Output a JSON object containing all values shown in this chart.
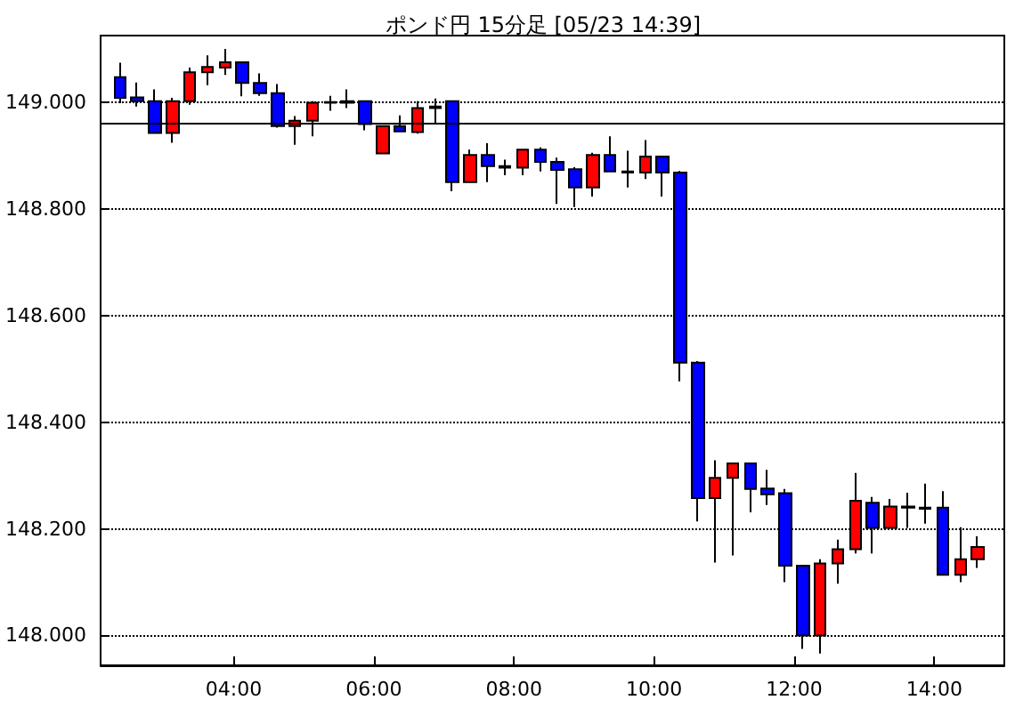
{
  "chart_data": {
    "type": "candlestick",
    "title": "ポンド円 15分足 [05/23 14:39]",
    "x": [
      2.375,
      2.625,
      2.875,
      3.125,
      3.375,
      3.625,
      3.875,
      4.125,
      4.375,
      4.625,
      4.875,
      5.125,
      5.375,
      5.625,
      5.875,
      6.125,
      6.375,
      6.625,
      6.875,
      7.125,
      7.375,
      7.625,
      7.875,
      8.125,
      8.375,
      8.625,
      8.875,
      9.125,
      9.375,
      9.625,
      9.875,
      10.125,
      10.375,
      10.625,
      10.875,
      11.125,
      11.375,
      11.625,
      11.875,
      12.125,
      12.375,
      12.625,
      12.875,
      13.125,
      13.375,
      13.625,
      13.875,
      14.125,
      14.375,
      14.625
    ],
    "ohlc": [
      [
        149.048,
        149.075,
        148.999,
        149.009
      ],
      [
        149.01,
        149.038,
        148.993,
        149.003
      ],
      [
        149.003,
        149.025,
        148.942,
        148.943
      ],
      [
        148.943,
        149.009,
        148.925,
        149.003
      ],
      [
        149.003,
        149.066,
        148.996,
        149.057
      ],
      [
        149.057,
        149.089,
        149.033,
        149.067
      ],
      [
        149.066,
        149.101,
        149.052,
        149.076
      ],
      [
        149.076,
        149.076,
        149.012,
        149.037
      ],
      [
        149.037,
        149.055,
        149.013,
        149.018
      ],
      [
        149.018,
        149.035,
        148.953,
        148.956
      ],
      [
        148.956,
        148.975,
        148.921,
        148.966
      ],
      [
        148.966,
        149.003,
        148.937,
        149.0
      ],
      [
        149.0,
        149.013,
        148.985,
        149.001
      ],
      [
        149.0,
        149.025,
        148.99,
        149.003
      ],
      [
        149.003,
        149.003,
        148.948,
        148.96
      ],
      [
        148.905,
        148.956,
        148.905,
        148.956
      ],
      [
        148.956,
        148.976,
        148.946,
        148.946
      ],
      [
        148.945,
        149.003,
        148.942,
        148.99
      ],
      [
        148.99,
        149.008,
        148.96,
        148.993
      ],
      [
        149.003,
        149.003,
        148.834,
        148.851
      ],
      [
        148.851,
        148.912,
        148.851,
        148.902
      ],
      [
        148.902,
        148.924,
        148.851,
        148.881
      ],
      [
        148.881,
        148.893,
        148.864,
        148.878
      ],
      [
        148.878,
        148.912,
        148.864,
        148.912
      ],
      [
        148.912,
        148.916,
        148.871,
        148.889
      ],
      [
        148.889,
        148.897,
        148.81,
        148.874
      ],
      [
        148.875,
        148.879,
        148.804,
        148.841
      ],
      [
        148.841,
        148.906,
        148.824,
        148.902
      ],
      [
        148.902,
        148.937,
        148.871,
        148.871
      ],
      [
        148.871,
        148.91,
        148.841,
        148.869
      ],
      [
        148.869,
        148.93,
        148.857,
        148.899
      ],
      [
        148.899,
        148.899,
        148.824,
        148.869
      ],
      [
        148.869,
        148.872,
        148.477,
        148.512
      ],
      [
        148.512,
        148.515,
        148.214,
        148.258
      ],
      [
        148.258,
        148.329,
        148.137,
        148.296
      ],
      [
        148.296,
        148.323,
        148.15,
        148.323
      ],
      [
        148.323,
        148.323,
        148.231,
        148.275
      ],
      [
        148.276,
        148.311,
        148.245,
        148.265
      ],
      [
        148.267,
        148.275,
        148.1,
        148.131
      ],
      [
        148.131,
        148.131,
        147.975,
        148.0
      ],
      [
        148.0,
        148.143,
        147.966,
        148.135
      ],
      [
        148.135,
        148.18,
        148.097,
        148.162
      ],
      [
        148.162,
        148.305,
        148.154,
        148.253
      ],
      [
        148.249,
        148.26,
        148.154,
        148.202
      ],
      [
        148.202,
        148.256,
        148.202,
        148.242
      ],
      [
        148.242,
        148.268,
        148.202,
        148.24
      ],
      [
        148.24,
        148.285,
        148.21,
        148.238
      ],
      [
        148.24,
        148.271,
        148.114,
        148.114
      ],
      [
        148.114,
        148.203,
        148.1,
        148.143
      ],
      [
        148.143,
        148.186,
        148.127,
        148.166
      ]
    ],
    "colors": [
      "#0000ff",
      "#0000ff",
      "#0000ff",
      "#ff0000",
      "#ff0000",
      "#ff0000",
      "#ff0000",
      "#0000ff",
      "#0000ff",
      "#0000ff",
      "#ff0000",
      "#ff0000",
      "#ff0000",
      "#ff0000",
      "#0000ff",
      "#ff0000",
      "#0000ff",
      "#ff0000",
      "#ff0000",
      "#0000ff",
      "#ff0000",
      "#0000ff",
      "#0000ff",
      "#ff0000",
      "#0000ff",
      "#0000ff",
      "#0000ff",
      "#ff0000",
      "#0000ff",
      "#0000ff",
      "#ff0000",
      "#0000ff",
      "#0000ff",
      "#0000ff",
      "#ff0000",
      "#ff0000",
      "#0000ff",
      "#0000ff",
      "#0000ff",
      "#0000ff",
      "#ff0000",
      "#ff0000",
      "#ff0000",
      "#0000ff",
      "#ff0000",
      "#0000ff",
      "#0000ff",
      "#0000ff",
      "#ff0000",
      "#ff0000"
    ],
    "xlim": [
      2.1,
      15.0
    ],
    "xticks": [
      {
        "value": 4,
        "label": "04:00"
      },
      {
        "value": 6,
        "label": "06:00"
      },
      {
        "value": 8,
        "label": "08:00"
      },
      {
        "value": 10,
        "label": "10:00"
      },
      {
        "value": 12,
        "label": "12:00"
      },
      {
        "value": 14,
        "label": "14:00"
      }
    ],
    "ylim": [
      147.944,
      149.126
    ],
    "yticks": [
      {
        "value": 148,
        "label": "148.000"
      },
      {
        "value": 148.2,
        "label": "148.200"
      },
      {
        "value": 148.4,
        "label": "148.400"
      },
      {
        "value": 148.6,
        "label": "148.600"
      },
      {
        "value": 148.8,
        "label": "148.800"
      },
      {
        "value": 149,
        "label": "149.000"
      }
    ],
    "ref_lines": [
      {
        "axis": "y",
        "value": 148.96,
        "color": "#000000",
        "line_style": "solid"
      }
    ],
    "grid": "y"
  }
}
